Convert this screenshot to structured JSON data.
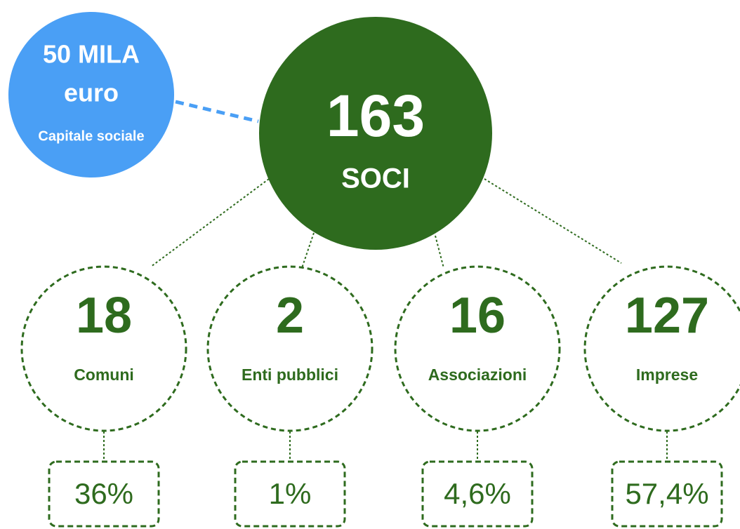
{
  "capital": {
    "amount": "50 MILA",
    "unit": "euro",
    "label": "Capitale sociale"
  },
  "members": {
    "total": 163,
    "label": "SOCI"
  },
  "groups": [
    {
      "count": 18,
      "label": "Comuni",
      "share": "36%"
    },
    {
      "count": 2,
      "label": "Enti pubblici",
      "share": "1%"
    },
    {
      "count": 16,
      "label": "Associazioni",
      "share": "4,6%"
    },
    {
      "count": 127,
      "label": "Imprese",
      "share": "57,4%"
    }
  ]
}
